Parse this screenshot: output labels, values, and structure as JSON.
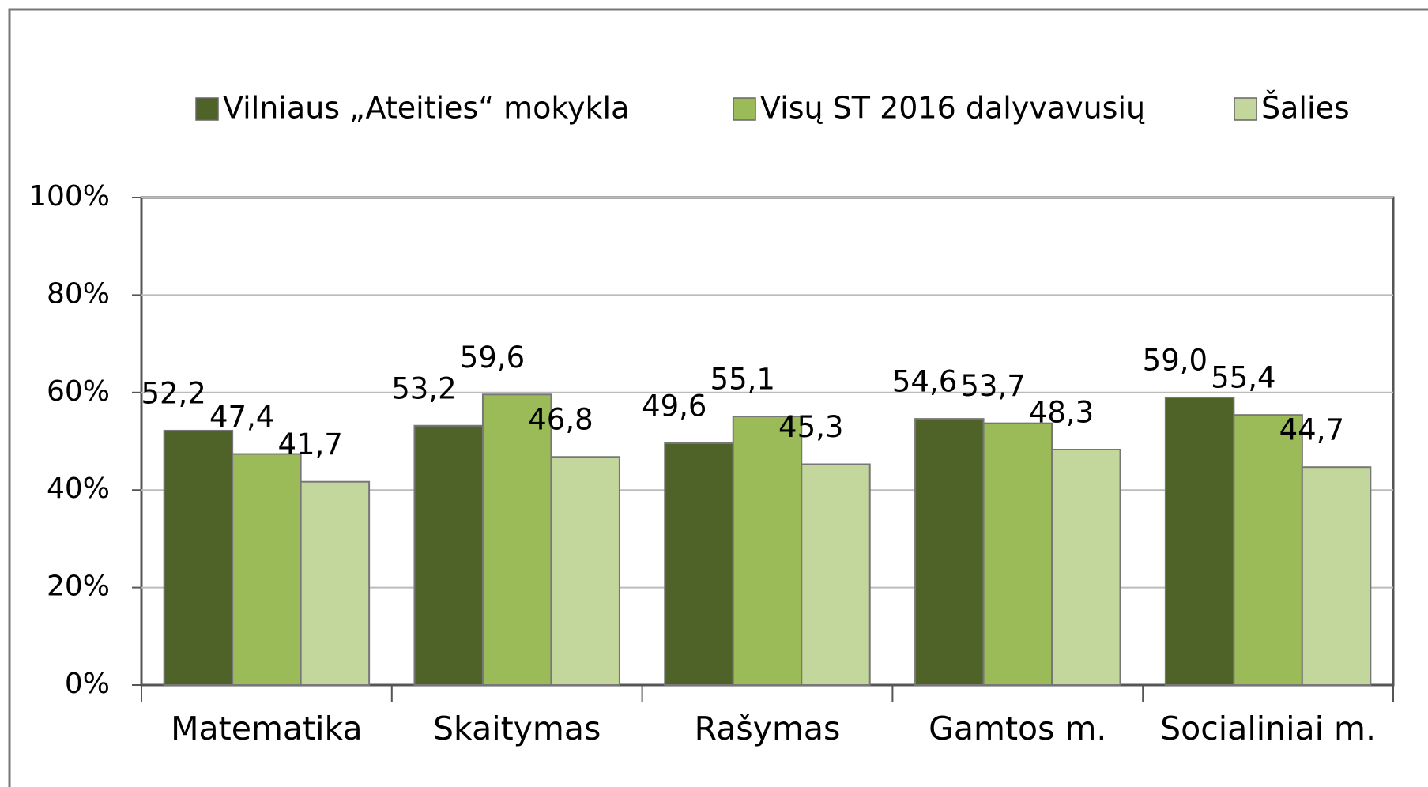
{
  "chart_data": {
    "type": "bar",
    "categories": [
      "Matematika",
      "Skaitymas",
      "Rašymas",
      "Gamtos m.",
      "Socialiniai m."
    ],
    "series": [
      {
        "name": "Vilniaus „Ateities“ mokykla",
        "color": "#4f6228",
        "values": [
          52.2,
          53.2,
          49.6,
          54.6,
          59.0
        ],
        "value_labels": [
          "52,2",
          "53,2",
          "49,6",
          "54,6",
          "59,0"
        ]
      },
      {
        "name": "Visų ST 2016 dalyvavusių",
        "color": "#9bbb59",
        "values": [
          47.4,
          59.6,
          55.1,
          53.7,
          55.4
        ],
        "value_labels": [
          "47,4",
          "59,6",
          "55,1",
          "53,7",
          "55,4"
        ]
      },
      {
        "name": "Šalies",
        "color": "#c3d69b",
        "values": [
          41.7,
          46.8,
          45.3,
          48.3,
          44.7
        ],
        "value_labels": [
          "41,7",
          "46,8",
          "45,3",
          "48,3",
          "44,7"
        ]
      }
    ],
    "ylim": [
      0,
      100
    ],
    "yticks": [
      {
        "value": 0,
        "label": "0%"
      },
      {
        "value": 20,
        "label": "20%"
      },
      {
        "value": 40,
        "label": "40%"
      },
      {
        "value": 60,
        "label": "60%"
      },
      {
        "value": 80,
        "label": "80%"
      },
      {
        "value": 100,
        "label": "100%"
      }
    ],
    "grid": true,
    "legend": "top"
  }
}
